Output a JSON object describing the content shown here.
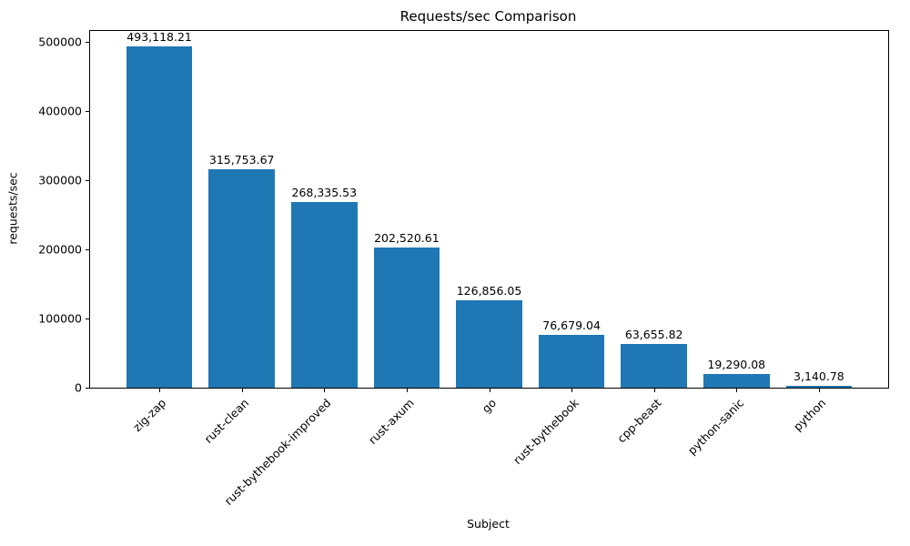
{
  "chart_data": {
    "type": "bar",
    "title": "Requests/sec Comparison",
    "xlabel": "Subject",
    "ylabel": "requests/sec",
    "categories": [
      "zig-zap",
      "rust-clean",
      "rust-bythebook-improved",
      "rust-axum",
      "go",
      "rust-bythebook",
      "cpp-beast",
      "python-sanic",
      "python"
    ],
    "values": [
      493118.21,
      315753.67,
      268335.53,
      202520.61,
      126856.05,
      76679.04,
      63655.82,
      19290.08,
      3140.78
    ],
    "value_labels": [
      "493,118.21",
      "315,753.67",
      "268,335.53",
      "202,520.61",
      "126,856.05",
      "76,679.04",
      "63,655.82",
      "19,290.08",
      "3,140.78"
    ],
    "yticks": [
      0,
      100000,
      200000,
      300000,
      400000,
      500000
    ],
    "ytick_labels": [
      "0",
      "100000",
      "200000",
      "300000",
      "400000",
      "500000"
    ],
    "ylim": [
      0,
      515800
    ],
    "bar_color": "#1f77b4",
    "grid": false,
    "legend": null,
    "xtick_rotation": 45
  }
}
